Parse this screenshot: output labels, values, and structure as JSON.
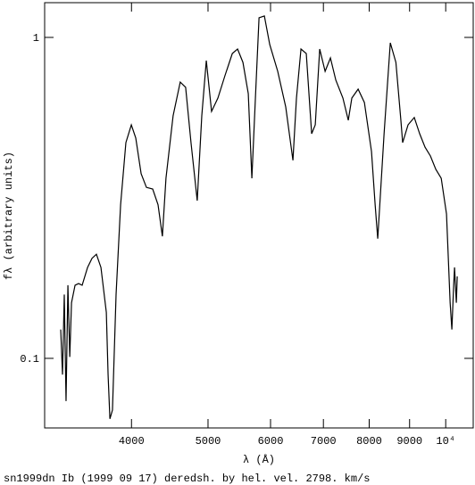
{
  "chart_data": {
    "type": "line",
    "xlabel": "λ (Å)",
    "ylabel": "fλ (arbitrary units)",
    "caption": "sn1999dn Ib (1999 09 17) deredsh. by hel. vel.  2798. km/s",
    "xscale": "log",
    "yscale": "log",
    "xlim": [
      3105,
      10835
    ],
    "ylim": [
      0.0607,
      1.283
    ],
    "xticks": [
      4000,
      5000,
      6000,
      7000,
      8000,
      9000,
      {
        "value": 10000,
        "label": "10⁴"
      }
    ],
    "yticks": [
      0.1,
      1
    ],
    "grid": false,
    "x": [
      3254,
      3271,
      3288,
      3305,
      3323,
      3341,
      3358,
      3393,
      3428,
      3464,
      3519,
      3565,
      3611,
      3659,
      3717,
      3736,
      3756,
      3784,
      3824,
      3875,
      3935,
      3998,
      4050,
      4114,
      4178,
      4255,
      4322,
      4377,
      4423,
      4516,
      4611,
      4684,
      4758,
      4845,
      4910,
      4975,
      5052,
      5146,
      5253,
      5367,
      5450,
      5536,
      5623,
      5682,
      5741,
      5802,
      5893,
      5986,
      6127,
      6272,
      6405,
      6471,
      6557,
      6659,
      6764,
      6836,
      6925,
      7035,
      7145,
      7258,
      7410,
      7527,
      7605,
      7746,
      7889,
      8054,
      8140,
      8202,
      8355,
      8508,
      8648,
      8774,
      8820,
      8960,
      9124,
      9269,
      9415,
      9564,
      9716,
      9870,
      10023,
      10130,
      10181,
      10235,
      10261,
      10315,
      10342
    ],
    "series": [
      {
        "color": "#000000",
        "values": [
          0.123,
          0.089,
          0.158,
          0.0736,
          0.169,
          0.101,
          0.149,
          0.169,
          0.171,
          0.169,
          0.192,
          0.205,
          0.211,
          0.192,
          0.139,
          0.089,
          0.0648,
          0.069,
          0.158,
          0.301,
          0.47,
          0.534,
          0.486,
          0.376,
          0.341,
          0.337,
          0.301,
          0.24,
          0.364,
          0.57,
          0.726,
          0.699,
          0.47,
          0.31,
          0.57,
          0.847,
          0.588,
          0.647,
          0.76,
          0.891,
          0.92,
          0.836,
          0.668,
          0.364,
          0.647,
          1.151,
          1.166,
          0.95,
          0.784,
          0.607,
          0.414,
          0.647,
          0.92,
          0.891,
          0.501,
          0.534,
          0.92,
          0.784,
          0.863,
          0.736,
          0.647,
          0.552,
          0.647,
          0.69,
          0.627,
          0.441,
          0.301,
          0.236,
          0.501,
          0.962,
          0.836,
          0.552,
          0.47,
          0.534,
          0.563,
          0.501,
          0.455,
          0.427,
          0.388,
          0.364,
          0.282,
          0.149,
          0.123,
          0.169,
          0.192,
          0.149,
          0.18
        ]
      }
    ]
  }
}
